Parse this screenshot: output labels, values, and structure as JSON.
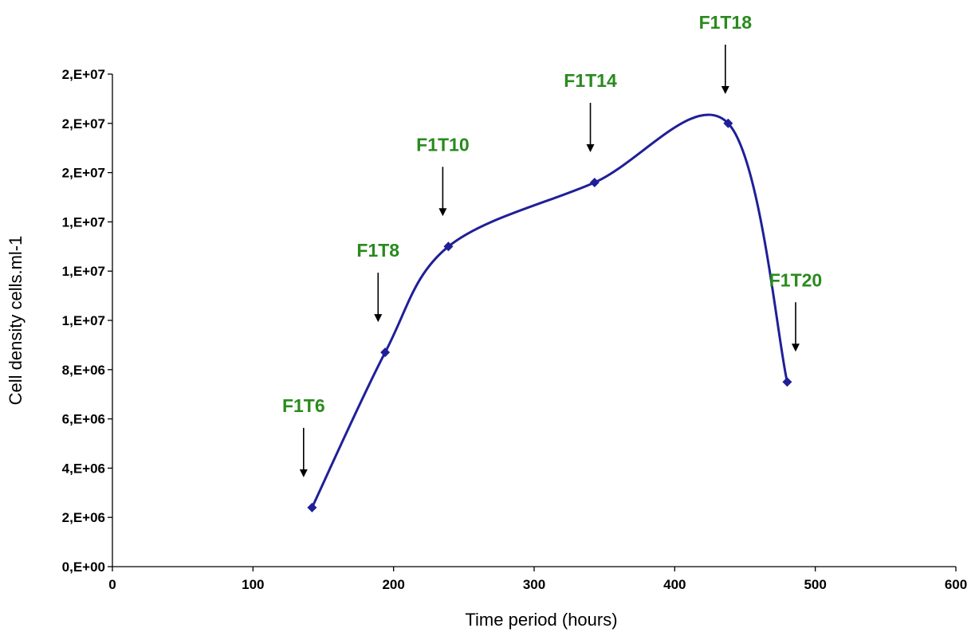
{
  "chart_data": {
    "type": "line",
    "xlabel": "Time period (hours)",
    "ylabel": "Cell density cells.ml-1",
    "xlim": [
      0,
      600
    ],
    "ylim": [
      0,
      20000000
    ],
    "x_ticks": [
      0,
      100,
      200,
      300,
      400,
      500,
      600
    ],
    "x_tick_labels": [
      "0",
      "100",
      "200",
      "300",
      "400",
      "500",
      "600"
    ],
    "y_ticks": [
      0,
      2000000,
      4000000,
      6000000,
      8000000,
      10000000,
      12000000,
      14000000,
      16000000,
      18000000,
      20000000
    ],
    "y_tick_labels": [
      "0,E+00",
      "2,E+06",
      "4,E+06",
      "6,E+06",
      "8,E+06",
      "1,E+07",
      "1,E+07",
      "1,E+07",
      "2,E+07",
      "2,E+07",
      "2,E+07"
    ],
    "grid": false,
    "smooth": true,
    "series": [
      {
        "x": [
          142,
          194,
          239,
          343,
          438,
          480
        ],
        "y": [
          2400000,
          8700000,
          13000000,
          15600000,
          18000000,
          7500000
        ]
      }
    ],
    "annotations": [
      {
        "text": "F1T6",
        "x": 136
      },
      {
        "text": "F1T8",
        "x": 189
      },
      {
        "text": "F1T10",
        "x": 235
      },
      {
        "text": "F1T14",
        "x": 340
      },
      {
        "text": "F1T18",
        "x": 436
      },
      {
        "text": "F1T20",
        "x": 486
      }
    ],
    "colors": {
      "line": "#1f1f99",
      "marker": "#1f1f99",
      "annotation_text": "#2a8a1e",
      "arrow": "#000000",
      "axis": "#000000"
    }
  }
}
